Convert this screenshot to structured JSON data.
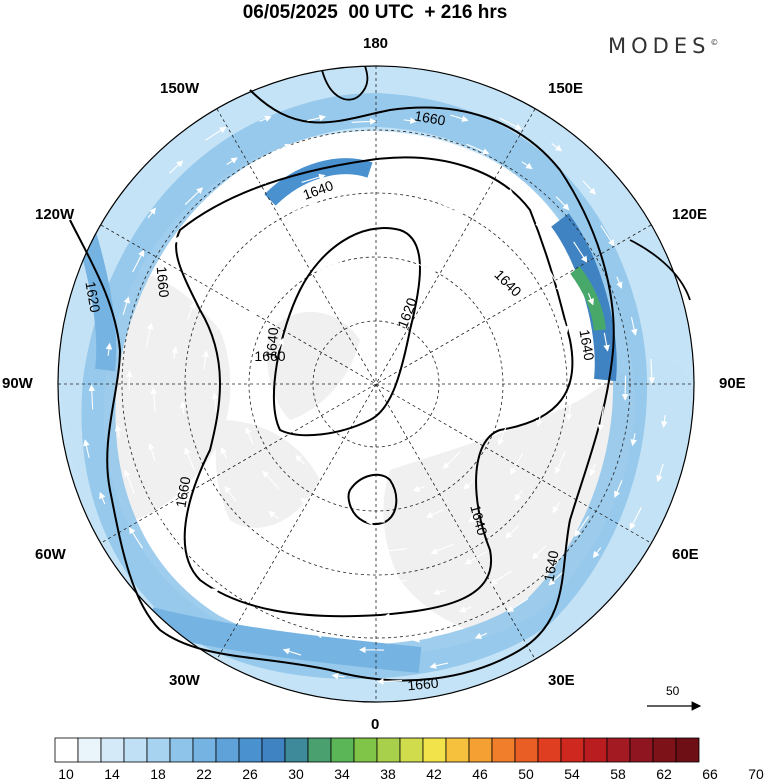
{
  "title": "06/05/2025  00 UTC  + 216 hrs",
  "brand": {
    "name": "MODES",
    "mark": "©"
  },
  "longitude_labels": {
    "n180": "180",
    "w150": "150W",
    "e150": "150E",
    "w120": "120W",
    "e120": "120E",
    "w90": "90W",
    "e90": "90E",
    "w60": "60W",
    "e60": "60E",
    "w30": "30W",
    "e30": "30E",
    "s0": "0"
  },
  "contour_labels": [
    "1660",
    "1640",
    "1620",
    "1640",
    "1640",
    "1620",
    "1660",
    "1640",
    "1660",
    "1640",
    "1640",
    "1660",
    "1660"
  ],
  "reference_vector": {
    "label": "50"
  },
  "colorbar": {
    "tick_labels": [
      "10",
      "14",
      "18",
      "22",
      "26",
      "30",
      "34",
      "38",
      "42",
      "46",
      "50",
      "54",
      "58",
      "62",
      "66",
      "70"
    ],
    "colors": [
      "#ffffff",
      "#eaf4fb",
      "#d4eaf8",
      "#bfe0f5",
      "#a7d3f0",
      "#8ec4ea",
      "#75b3e2",
      "#5ea2d9",
      "#4a91cf",
      "#3f83c2",
      "#3e8a9a",
      "#4aa06e",
      "#5ab656",
      "#80c448",
      "#a8d04a",
      "#d0dc4c",
      "#f3e34a",
      "#f6c23e",
      "#f5a032",
      "#f07e2a",
      "#e95e24",
      "#df3f20",
      "#cf281f",
      "#b91d20",
      "#a31a22",
      "#8f1620",
      "#7e1219",
      "#6d0f14"
    ]
  },
  "map_colors": {
    "land": "#f0f0f0",
    "jet_light": "#c8e2f6",
    "jet_mid": "#8fc3ea",
    "jet_strong": "#4f95d3",
    "jet_core": "#47a86a"
  }
}
